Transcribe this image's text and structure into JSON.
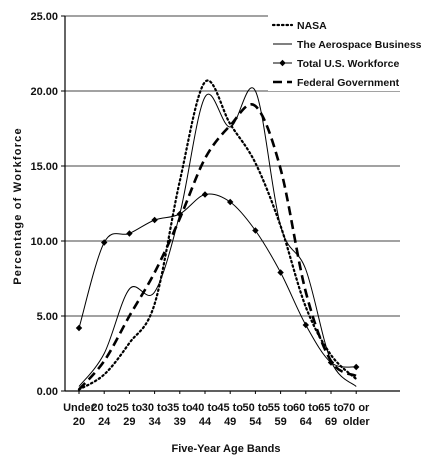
{
  "chart_data": {
    "type": "line",
    "title": "",
    "xlabel": "Five-Year Age Bands",
    "ylabel": "Percentage of Workforce",
    "ylim": [
      0,
      25
    ],
    "yticks": [
      "0.00",
      "5.00",
      "10.00",
      "15.00",
      "20.00",
      "25.00"
    ],
    "grid": "horizontal",
    "legend_position": "top-right",
    "categories": [
      [
        "Under",
        "20"
      ],
      [
        "20 to",
        "24"
      ],
      [
        "25 to",
        "29"
      ],
      [
        "30 to",
        "34"
      ],
      [
        "35 to",
        "39"
      ],
      [
        "40 to",
        "44"
      ],
      [
        "45 to",
        "49"
      ],
      [
        "50 to",
        "54"
      ],
      [
        "55 to",
        "59"
      ],
      [
        "60 to",
        "64"
      ],
      [
        "65 to",
        "69"
      ],
      [
        "70 or",
        "older"
      ]
    ],
    "series": [
      {
        "name": "NASA",
        "style": "dotted",
        "color": "#000000",
        "values": [
          0.1,
          1.1,
          3.2,
          5.8,
          14.0,
          20.6,
          17.8,
          15.2,
          11.0,
          5.6,
          2.4,
          0.8
        ]
      },
      {
        "name": "The Aerospace Business",
        "style": "solid-thin",
        "color": "#000000",
        "values": [
          0.3,
          2.5,
          6.8,
          6.6,
          11.8,
          19.6,
          17.6,
          20.0,
          11.0,
          8.1,
          2.0,
          0.3
        ]
      },
      {
        "name": "Total U.S. Workforce",
        "style": "solid-diamond",
        "color": "#000000",
        "values": [
          4.2,
          9.9,
          10.5,
          11.4,
          11.8,
          13.1,
          12.6,
          10.7,
          7.9,
          4.4,
          1.9,
          1.6
        ]
      },
      {
        "name": "Federal Government",
        "style": "dashed-bold",
        "color": "#000000",
        "values": [
          0.1,
          2.0,
          5.0,
          7.9,
          11.5,
          15.5,
          17.7,
          19.0,
          14.8,
          6.6,
          2.0,
          1.0
        ]
      }
    ]
  }
}
